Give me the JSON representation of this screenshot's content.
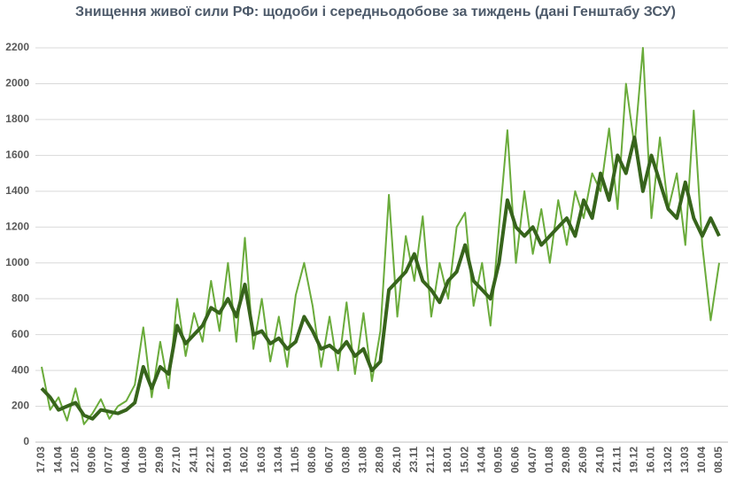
{
  "chart_data": {
    "type": "line",
    "title": "Знищення живої сили РФ: щодоби і середньодобове за тиждень (дані Генштабу ЗСУ)",
    "categories": [
      "17.03",
      null,
      "14.04",
      null,
      "12.05",
      null,
      "09.06",
      null,
      "07.07",
      null,
      "04.08",
      null,
      "01.09",
      null,
      "29.09",
      null,
      "27.10",
      null,
      "24.11",
      null,
      "22.12",
      null,
      "19.01",
      null,
      "16.02",
      null,
      "16.03",
      null,
      "13.04",
      null,
      "11.05",
      null,
      "08.06",
      null,
      "06.07",
      null,
      "03.08",
      null,
      "31.08",
      null,
      "28.09",
      null,
      "26.10",
      null,
      "23.11",
      null,
      "21.12",
      null,
      "18.01",
      null,
      "15.02",
      null,
      "14.04",
      null,
      "09.05",
      null,
      "06.06",
      null,
      "04.07",
      null,
      "01.08",
      null,
      "29.08",
      null,
      "26.09",
      null,
      "24.10",
      null,
      "21.11",
      null,
      "19.12",
      null,
      "16.01",
      null,
      "13.02",
      null,
      "13.03",
      null,
      "10.04",
      null,
      "08.05"
    ],
    "series": [
      {
        "color": "#6aab3b",
        "values": [
          420,
          180,
          250,
          120,
          300,
          100,
          160,
          240,
          130,
          200,
          230,
          320,
          640,
          250,
          560,
          300,
          800,
          480,
          720,
          560,
          900,
          620,
          1000,
          560,
          1140,
          520,
          800,
          450,
          700,
          420,
          820,
          1000,
          760,
          420,
          700,
          400,
          780,
          380,
          720,
          340,
          620,
          1380,
          700,
          1150,
          900,
          1260,
          700,
          1000,
          800,
          1200,
          1280,
          760,
          1000,
          650,
          1200,
          1740,
          1000,
          1400,
          1050,
          1300,
          1000,
          1350,
          1100,
          1400,
          1250,
          1500,
          1400,
          1750,
          1300,
          2000,
          1650,
          2200,
          1250,
          1700,
          1300,
          1500,
          1100,
          1850,
          1100,
          680,
          1000
        ]
      },
      {
        "color": "#37641c",
        "values": [
          300,
          250,
          180,
          200,
          220,
          150,
          130,
          180,
          170,
          160,
          180,
          220,
          420,
          300,
          420,
          380,
          650,
          550,
          600,
          650,
          750,
          720,
          800,
          700,
          880,
          600,
          620,
          550,
          580,
          520,
          560,
          700,
          620,
          520,
          540,
          500,
          560,
          480,
          520,
          400,
          450,
          850,
          900,
          950,
          1050,
          900,
          850,
          780,
          900,
          950,
          1100,
          900,
          850,
          800,
          1000,
          1350,
          1200,
          1150,
          1200,
          1100,
          1150,
          1200,
          1250,
          1150,
          1350,
          1250,
          1500,
          1350,
          1600,
          1500,
          1700,
          1400,
          1600,
          1450,
          1300,
          1250,
          1450,
          1250,
          1150,
          1250,
          1150
        ]
      }
    ],
    "ylim": [
      0,
      2200
    ],
    "yticks": [
      0,
      200,
      400,
      600,
      800,
      1000,
      1200,
      1400,
      1600,
      1800,
      2000,
      2200
    ],
    "grid": true
  }
}
